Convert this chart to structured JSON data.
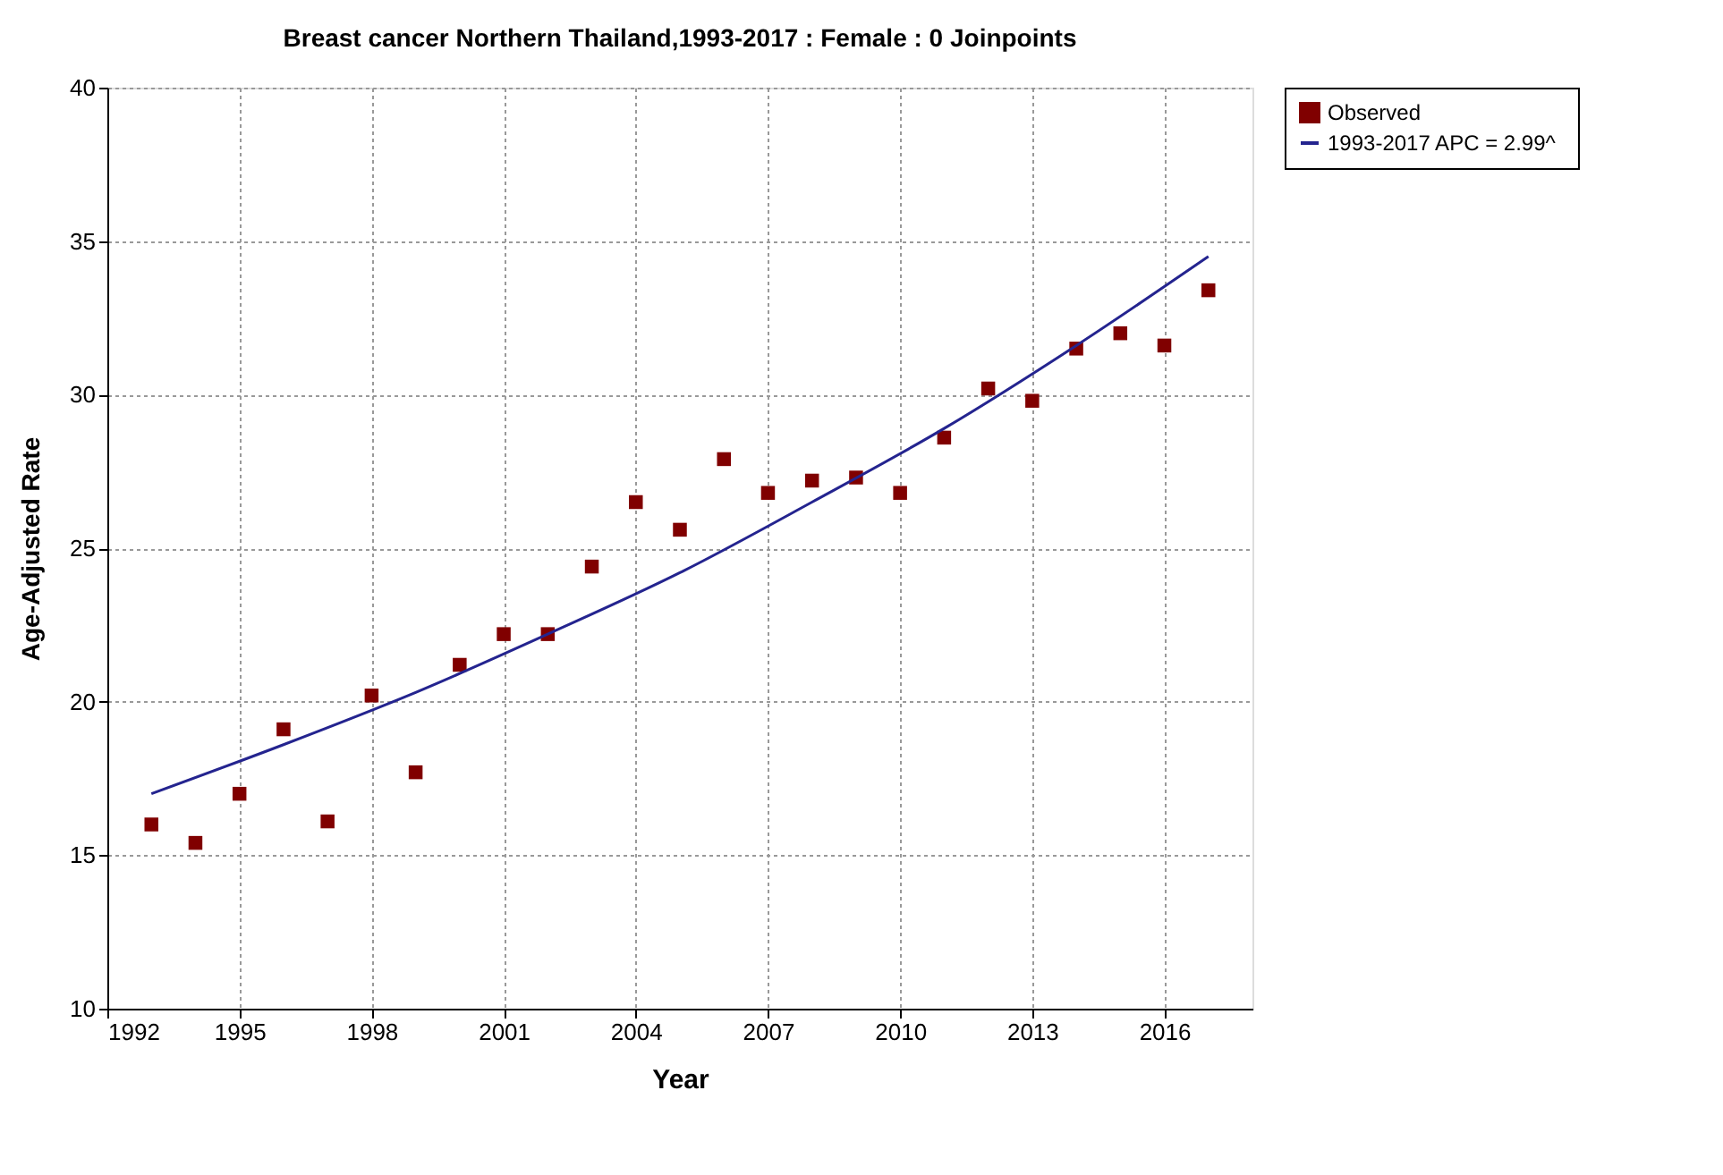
{
  "chart_data": {
    "type": "scatter",
    "title": "Breast cancer Northern Thailand,1993-2017 : Female : 0 Joinpoints",
    "xlabel": "Year",
    "ylabel": "Age-Adjusted Rate",
    "xlim": [
      1992,
      2018
    ],
    "xticks": [
      1992,
      1995,
      1998,
      2001,
      2004,
      2007,
      2010,
      2013,
      2016
    ],
    "ylim": [
      10,
      40
    ],
    "yticks": [
      10,
      15,
      20,
      25,
      30,
      35,
      40
    ],
    "grid": true,
    "legend": "top right",
    "series": [
      {
        "name": "Observed",
        "marker": "square",
        "color": "#800000",
        "x": [
          1993,
          1994,
          1995,
          1996,
          1997,
          1998,
          1999,
          2000,
          2001,
          2002,
          2003,
          2004,
          2005,
          2006,
          2007,
          2008,
          2009,
          2010,
          2011,
          2012,
          2013,
          2014,
          2015,
          2016,
          2017
        ],
        "values": [
          16.0,
          15.4,
          17.0,
          19.1,
          16.1,
          20.2,
          17.7,
          21.2,
          22.2,
          22.2,
          24.4,
          26.5,
          25.6,
          27.9,
          26.8,
          27.2,
          27.3,
          26.8,
          28.6,
          30.2,
          29.8,
          31.5,
          32.0,
          31.6,
          33.4
        ]
      },
      {
        "name": "1993-2017 APC  = 2.99^",
        "type": "line",
        "marker": "none",
        "line_style": "solid",
        "color": "#24248f",
        "x": [
          1993,
          1996,
          1999,
          2002,
          2005,
          2008,
          2011,
          2014,
          2017
        ],
        "values": [
          17.0,
          18.6,
          20.3,
          22.2,
          24.2,
          26.5,
          28.9,
          31.6,
          34.5
        ]
      }
    ]
  }
}
